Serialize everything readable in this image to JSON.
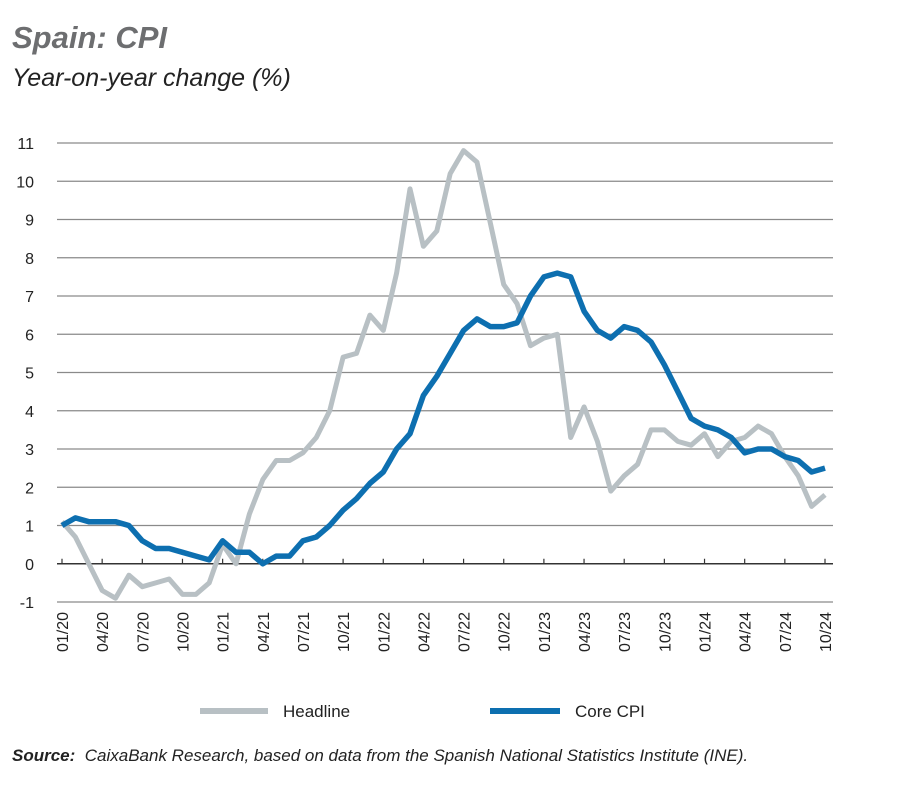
{
  "title": "Spain: CPI",
  "subtitle": "Year-on-year change (%)",
  "source_label": "Source:",
  "source_text": "CaixaBank Research, based on data from the Spanish National Statistics Institute (INE).",
  "chart_data": {
    "type": "line",
    "title": "Spain: CPI",
    "subtitle": "Year-on-year change (%)",
    "xlabel": "",
    "ylabel": "",
    "ylim": [
      -1,
      11
    ],
    "yticks": [
      -1,
      0,
      1,
      2,
      3,
      4,
      5,
      6,
      7,
      8,
      9,
      10,
      11
    ],
    "grid": true,
    "legend_position": "bottom",
    "x": [
      "01/20",
      "02/20",
      "03/20",
      "04/20",
      "05/20",
      "06/20",
      "07/20",
      "08/20",
      "09/20",
      "10/20",
      "11/20",
      "12/20",
      "01/21",
      "02/21",
      "03/21",
      "04/21",
      "05/21",
      "06/21",
      "07/21",
      "08/21",
      "09/21",
      "10/21",
      "11/21",
      "12/21",
      "01/22",
      "02/22",
      "03/22",
      "04/22",
      "05/22",
      "06/22",
      "07/22",
      "08/22",
      "09/22",
      "10/22",
      "11/22",
      "12/22",
      "01/23",
      "02/23",
      "03/23",
      "04/23",
      "05/23",
      "06/23",
      "07/23",
      "08/23",
      "09/23",
      "10/23",
      "11/23",
      "12/23",
      "01/24",
      "02/24",
      "03/24",
      "04/24",
      "05/24",
      "06/24",
      "07/24",
      "08/24",
      "09/24",
      "10/24"
    ],
    "xticklabels": [
      "01/20",
      "04/20",
      "07/20",
      "10/20",
      "01/21",
      "04/21",
      "07/21",
      "10/21",
      "01/22",
      "04/22",
      "07/22",
      "10/22",
      "01/23",
      "04/23",
      "07/23",
      "10/23",
      "01/24",
      "04/24",
      "07/24",
      "10/24"
    ],
    "series": [
      {
        "name": "Headline",
        "color": "#b8c0c4",
        "values": [
          1.1,
          0.7,
          0.0,
          -0.7,
          -0.9,
          -0.3,
          -0.6,
          -0.5,
          -0.4,
          -0.8,
          -0.8,
          -0.5,
          0.5,
          0.0,
          1.3,
          2.2,
          2.7,
          2.7,
          2.9,
          3.3,
          4.0,
          5.4,
          5.5,
          6.5,
          6.1,
          7.6,
          9.8,
          8.3,
          8.7,
          10.2,
          10.8,
          10.5,
          8.9,
          7.3,
          6.8,
          5.7,
          5.9,
          6.0,
          3.3,
          4.1,
          3.2,
          1.9,
          2.3,
          2.6,
          3.5,
          3.5,
          3.2,
          3.1,
          3.4,
          2.8,
          3.2,
          3.3,
          3.6,
          3.4,
          2.8,
          2.3,
          1.5,
          1.8
        ]
      },
      {
        "name": "Core CPI",
        "color": "#0d6fb0",
        "values": [
          1.0,
          1.2,
          1.1,
          1.1,
          1.1,
          1.0,
          0.6,
          0.4,
          0.4,
          0.3,
          0.2,
          0.1,
          0.6,
          0.3,
          0.3,
          0.0,
          0.2,
          0.2,
          0.6,
          0.7,
          1.0,
          1.4,
          1.7,
          2.1,
          2.4,
          3.0,
          3.4,
          4.4,
          4.9,
          5.5,
          6.1,
          6.4,
          6.2,
          6.2,
          6.3,
          7.0,
          7.5,
          7.6,
          7.5,
          6.6,
          6.1,
          5.9,
          6.2,
          6.1,
          5.8,
          5.2,
          4.5,
          3.8,
          3.6,
          3.5,
          3.3,
          2.9,
          3.0,
          3.0,
          2.8,
          2.7,
          2.4,
          2.5
        ]
      }
    ]
  }
}
